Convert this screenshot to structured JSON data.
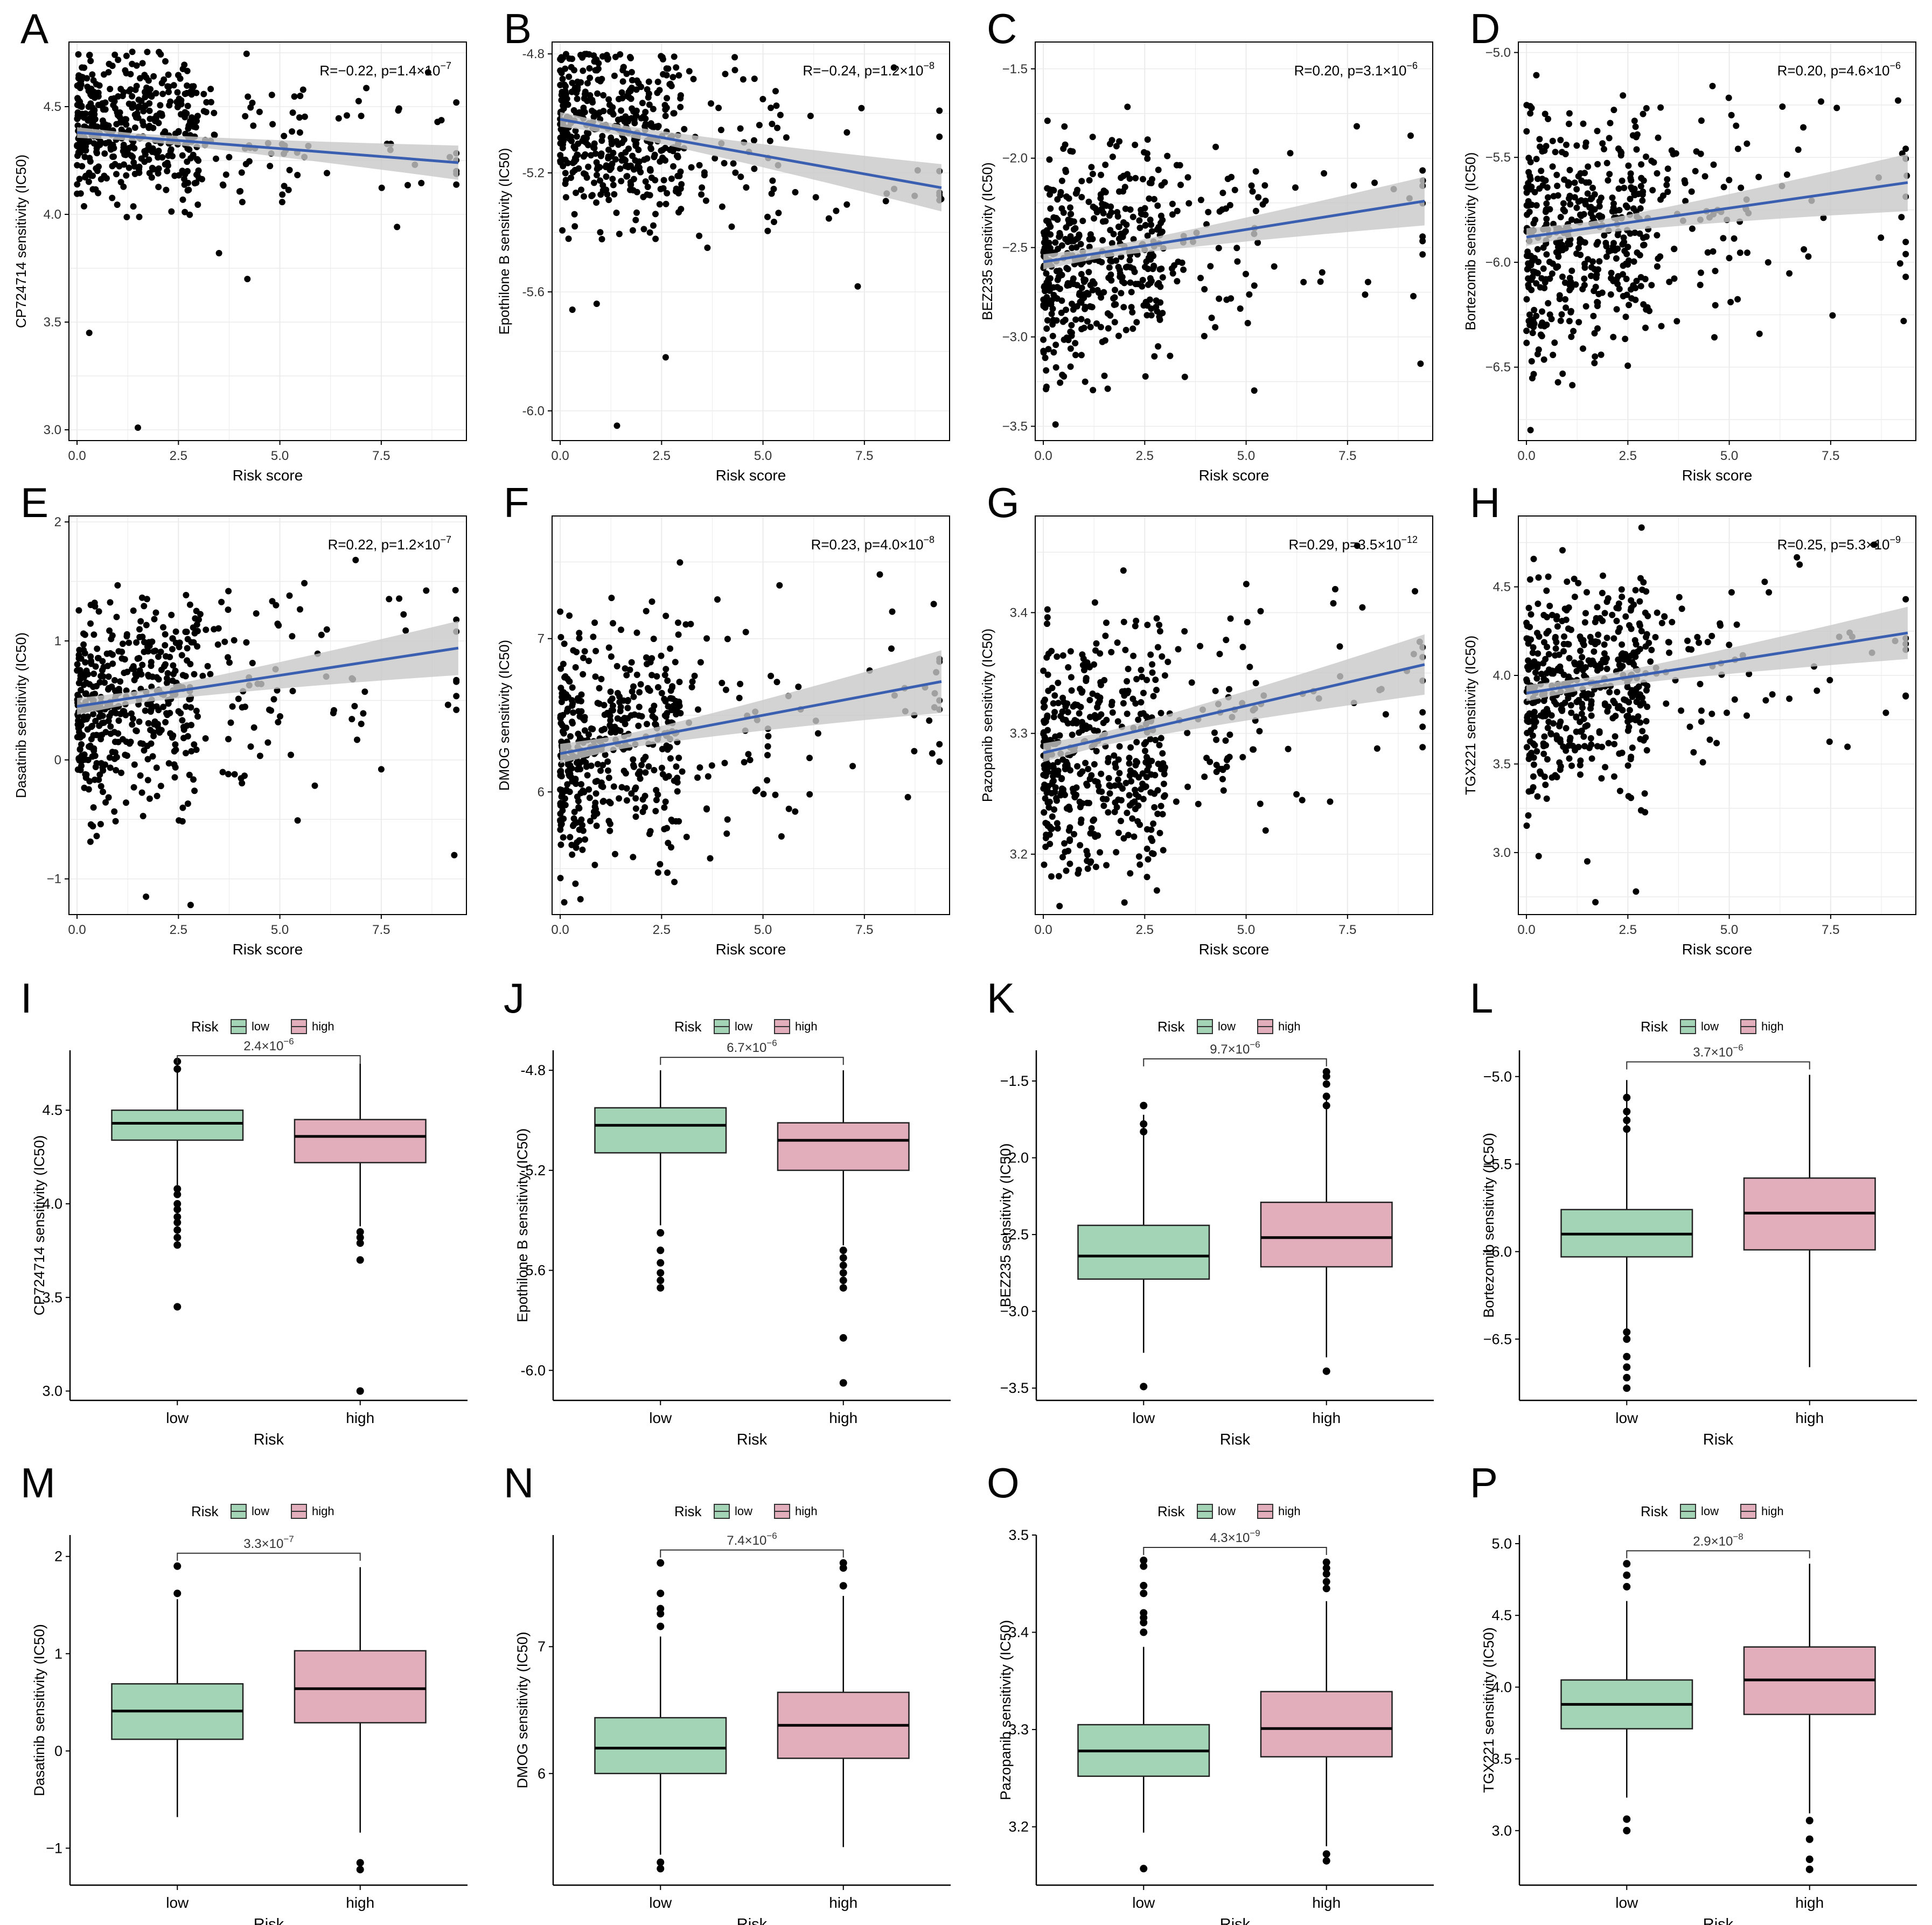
{
  "figure": {
    "colors": {
      "point": "#000000",
      "fit_line": "#3a5fb0",
      "ci_band": "#c8c8c8",
      "grid": "#ebebeb",
      "low_box": "#a3d4b5",
      "high_box": "#e3aebc",
      "axis": "#000000"
    },
    "panels": [
      {
        "id": "A",
        "type": "scatter",
        "xlabel": "Risk score",
        "ylabel": "CP724714 sensitivity (IC50)",
        "xlim": [
          -0.2,
          9.6
        ],
        "ylim": [
          2.95,
          4.8
        ],
        "yticks": [
          "3.0",
          "3.5",
          "4.0",
          "4.5"
        ],
        "xticks": [
          "0.0",
          "2.5",
          "5.0",
          "7.5"
        ],
        "annotation": {
          "r": "R=−0.22, p=1.4×10",
          "exp": "−7"
        },
        "fit": {
          "start": [
            0,
            4.38
          ],
          "end": [
            9.4,
            4.24
          ],
          "ci": 0.07
        },
        "cloud": {
          "ymin": 3.78,
          "ymax": 4.76,
          "center": 4.4,
          "spread": 0.17,
          "n": 520,
          "seed": 11
        },
        "extra": [
          [
            0.3,
            3.45
          ],
          [
            1.5,
            3.01
          ],
          [
            4.2,
            3.7
          ],
          [
            3.5,
            3.82
          ]
        ]
      },
      {
        "id": "B",
        "type": "scatter",
        "xlabel": "Risk score",
        "ylabel": "Epothilone B sensitivity (IC50)",
        "xlim": [
          -0.2,
          9.6
        ],
        "ylim": [
          -6.1,
          -4.76
        ],
        "yticks": [
          "-6.0",
          "-5.6",
          "-5.2",
          "-4.8"
        ],
        "xticks": [
          "0.0",
          "2.5",
          "5.0",
          "7.5"
        ],
        "annotation": {
          "r": "R=−0.24, p=1.2×10",
          "exp": "−8"
        },
        "fit": {
          "start": [
            0,
            -5.02
          ],
          "end": [
            9.4,
            -5.25
          ],
          "ci": 0.07
        },
        "cloud": {
          "ymin": -5.6,
          "ymax": -4.8,
          "center": -5.05,
          "spread": 0.15,
          "n": 520,
          "seed": 23
        },
        "extra": [
          [
            1.4,
            -6.05
          ],
          [
            2.6,
            -5.82
          ],
          [
            0.3,
            -5.66
          ],
          [
            0.9,
            -5.64
          ]
        ]
      },
      {
        "id": "C",
        "type": "scatter",
        "xlabel": "Risk score",
        "ylabel": "BEZ235 sensitivity (IC50)",
        "xlim": [
          -0.2,
          9.6
        ],
        "ylim": [
          -3.58,
          -1.35
        ],
        "yticks": [
          "−3.5",
          "−3.0",
          "−2.5",
          "−2.0",
          "−1.5"
        ],
        "xticks": [
          "0.0",
          "2.5",
          "5.0",
          "7.5"
        ],
        "annotation": {
          "r": "R=0.20, p=3.1×10",
          "exp": "−6"
        },
        "fit": {
          "start": [
            0,
            -2.58
          ],
          "end": [
            9.4,
            -2.24
          ],
          "ci": 0.12
        },
        "cloud": {
          "ymin": -3.3,
          "ymax": -1.45,
          "center": -2.55,
          "spread": 0.3,
          "n": 520,
          "seed": 37
        },
        "extra": [
          [
            0.3,
            -3.49
          ],
          [
            9.3,
            -3.15
          ],
          [
            5.2,
            -3.3
          ]
        ]
      },
      {
        "id": "D",
        "type": "scatter",
        "xlabel": "Risk score",
        "ylabel": "Bortezomib sensitivity (IC50)",
        "xlim": [
          -0.2,
          9.6
        ],
        "ylim": [
          -6.85,
          -4.95
        ],
        "yticks": [
          "−6.5",
          "−6.0",
          "−5.5",
          "−5.0"
        ],
        "xticks": [
          "0.0",
          "2.5",
          "5.0",
          "7.5"
        ],
        "annotation": {
          "r": "R=0.20, p=4.6×10",
          "exp": "−6"
        },
        "fit": {
          "start": [
            0,
            -5.88
          ],
          "end": [
            9.4,
            -5.62
          ],
          "ci": 0.12
        },
        "cloud": {
          "ymin": -6.6,
          "ymax": -5.0,
          "center": -5.87,
          "spread": 0.28,
          "n": 520,
          "seed": 41
        },
        "extra": [
          [
            0.1,
            -6.8
          ],
          [
            9.3,
            -6.28
          ],
          [
            4.3,
            -6.05
          ]
        ]
      },
      {
        "id": "E",
        "type": "scatter",
        "xlabel": "Risk score",
        "ylabel": "Dasatinib sensitivity (IC50)",
        "xlim": [
          -0.2,
          9.6
        ],
        "ylim": [
          -1.3,
          2.05
        ],
        "yticks": [
          "−1",
          "0",
          "1",
          "2"
        ],
        "xticks": [
          "0.0",
          "2.5",
          "5.0",
          "7.5"
        ],
        "annotation": {
          "r": "R=0.22, p=1.2×10",
          "exp": "−7"
        },
        "fit": {
          "start": [
            0,
            0.45
          ],
          "end": [
            9.4,
            0.94
          ],
          "ci": 0.2
        },
        "cloud": {
          "ymin": -0.7,
          "ymax": 1.9,
          "center": 0.5,
          "spread": 0.45,
          "n": 520,
          "seed": 53
        },
        "extra": [
          [
            2.8,
            -1.22
          ],
          [
            1.7,
            -1.15
          ],
          [
            9.3,
            -0.8
          ]
        ]
      },
      {
        "id": "F",
        "type": "scatter",
        "xlabel": "Risk score",
        "ylabel": "DMOG sensitivity (IC50)",
        "xlim": [
          -0.2,
          9.6
        ],
        "ylim": [
          5.2,
          7.8
        ],
        "yticks": [
          "6",
          "7"
        ],
        "xticks": [
          "0.0",
          "2.5",
          "5.0",
          "7.5"
        ],
        "annotation": {
          "r": "R=0.23, p=4.0×10",
          "exp": "−8"
        },
        "fit": {
          "start": [
            0,
            6.25
          ],
          "end": [
            9.4,
            6.72
          ],
          "ci": 0.18
        },
        "cloud": {
          "ymin": 5.4,
          "ymax": 7.7,
          "center": 6.3,
          "spread": 0.38,
          "n": 520,
          "seed": 67
        },
        "extra": [
          [
            0.1,
            5.28
          ],
          [
            0.5,
            5.3
          ]
        ]
      },
      {
        "id": "G",
        "type": "scatter",
        "xlabel": "Risk score",
        "ylabel": "Pazopanib sensitivity (IC50)",
        "xlim": [
          -0.2,
          9.6
        ],
        "ylim": [
          3.15,
          3.48
        ],
        "yticks": [
          "3.2",
          "3.3",
          "3.4"
        ],
        "xticks": [
          "0.0",
          "2.5",
          "5.0",
          "7.5"
        ],
        "annotation": {
          "r": "R=0.29, p=3.5×10",
          "exp": "−12"
        },
        "fit": {
          "start": [
            0,
            3.284
          ],
          "end": [
            9.4,
            3.357
          ],
          "ci": 0.022
        },
        "cloud": {
          "ymin": 3.18,
          "ymax": 3.47,
          "center": 3.285,
          "spread": 0.05,
          "n": 520,
          "seed": 79
        },
        "extra": [
          [
            0.4,
            3.157
          ],
          [
            2.0,
            3.16
          ],
          [
            2.8,
            3.17
          ]
        ]
      },
      {
        "id": "H",
        "type": "scatter",
        "xlabel": "Risk score",
        "ylabel": "TGX221 sensitivity (IC50)",
        "xlim": [
          -0.2,
          9.6
        ],
        "ylim": [
          2.65,
          4.9
        ],
        "yticks": [
          "3.0",
          "3.5",
          "4.0",
          "4.5"
        ],
        "xticks": [
          "0.0",
          "2.5",
          "5.0",
          "7.5"
        ],
        "annotation": {
          "r": "R=0.25, p=5.3×10",
          "exp": "−9"
        },
        "fit": {
          "start": [
            0,
            3.9
          ],
          "end": [
            9.4,
            4.24
          ],
          "ci": 0.13
        },
        "cloud": {
          "ymin": 3.15,
          "ymax": 4.85,
          "center": 3.95,
          "spread": 0.3,
          "n": 520,
          "seed": 83
        },
        "extra": [
          [
            1.7,
            2.72
          ],
          [
            2.7,
            2.78
          ],
          [
            0.3,
            2.98
          ],
          [
            1.5,
            2.95
          ]
        ]
      },
      {
        "id": "I",
        "type": "box",
        "legend_title": "Risk",
        "legend_labels": [
          "low",
          "high"
        ],
        "xlabel": "Risk",
        "ylabel": "CP724714 sensitivity (IC50)",
        "categories": [
          "low",
          "high"
        ],
        "ylim": [
          2.95,
          4.82
        ],
        "yticks": [
          "3.0",
          "3.5",
          "4.0",
          "4.5"
        ],
        "pvalue": {
          "base": "2.4×10",
          "exp": "−6"
        },
        "boxes": [
          {
            "q1": 4.34,
            "median": 4.43,
            "q3": 4.5,
            "wlo": 4.1,
            "whi": 4.74,
            "outliers": [
              4.76,
              4.72,
              4.08,
              4.05,
              4.0,
              3.97,
              3.93,
              3.9,
              3.86,
              3.82,
              3.78,
              3.45
            ]
          },
          {
            "q1": 4.22,
            "median": 4.36,
            "q3": 4.45,
            "wlo": 3.88,
            "whi": 4.75,
            "outliers": [
              3.85,
              3.82,
              3.79,
              3.7,
              3.0
            ]
          }
        ]
      },
      {
        "id": "J",
        "type": "box",
        "legend_title": "Risk",
        "legend_labels": [
          "low",
          "high"
        ],
        "xlabel": "Risk",
        "ylabel": "Epothilone B sensitivity (IC50)",
        "categories": [
          "low",
          "high"
        ],
        "ylim": [
          -6.12,
          -4.72
        ],
        "yticks": [
          "-6.0",
          "-5.6",
          "-5.2",
          "-4.8"
        ],
        "pvalue": {
          "base": "6.7×10",
          "exp": "−6"
        },
        "boxes": [
          {
            "q1": -5.13,
            "median": -5.02,
            "q3": -4.95,
            "wlo": -5.42,
            "whi": -4.8,
            "outliers": [
              -5.45,
              -5.52,
              -5.57,
              -5.61,
              -5.64,
              -5.67
            ]
          },
          {
            "q1": -5.2,
            "median": -5.08,
            "q3": -5.01,
            "wlo": -5.5,
            "whi": -4.8,
            "outliers": [
              -5.52,
              -5.55,
              -5.58,
              -5.61,
              -5.64,
              -5.67,
              -5.87,
              -6.05
            ]
          }
        ]
      },
      {
        "id": "K",
        "type": "box",
        "legend_title": "Risk",
        "legend_labels": [
          "low",
          "high"
        ],
        "xlabel": "Risk",
        "ylabel": "BEZ235 sensitivity (IC50)",
        "categories": [
          "low",
          "high"
        ],
        "ylim": [
          -3.58,
          -1.3
        ],
        "yticks": [
          "−3.5",
          "−3.0",
          "−2.5",
          "−2.0",
          "−1.5"
        ],
        "pvalue": {
          "base": "9.7×10",
          "exp": "−6"
        },
        "boxes": [
          {
            "q1": -2.79,
            "median": -2.64,
            "q3": -2.44,
            "wlo": -3.27,
            "whi": -1.72,
            "outliers": [
              -1.66,
              -1.78,
              -1.83,
              -3.49
            ]
          },
          {
            "q1": -2.71,
            "median": -2.52,
            "q3": -2.29,
            "wlo": -3.3,
            "whi": -1.58,
            "outliers": [
              -1.44,
              -1.47,
              -1.52,
              -1.6,
              -1.66,
              -3.39
            ]
          }
        ]
      },
      {
        "id": "L",
        "type": "box",
        "legend_title": "Risk",
        "legend_labels": [
          "low",
          "high"
        ],
        "xlabel": "Risk",
        "ylabel": "Bortezomib sensitivity (IC50)",
        "categories": [
          "low",
          "high"
        ],
        "ylim": [
          -6.85,
          -4.85
        ],
        "yticks": [
          "−6.5",
          "−6.0",
          "−5.5",
          "−5.0"
        ],
        "pvalue": {
          "base": "3.7×10",
          "exp": "−6"
        },
        "boxes": [
          {
            "q1": -6.03,
            "median": -5.9,
            "q3": -5.76,
            "wlo": -6.44,
            "whi": -5.02,
            "outliers": [
              -5.12,
              -5.2,
              -5.25,
              -5.3,
              -6.46,
              -6.5,
              -6.6,
              -6.66,
              -6.72,
              -6.78
            ]
          },
          {
            "q1": -5.99,
            "median": -5.78,
            "q3": -5.58,
            "wlo": -6.66,
            "whi": -4.99,
            "outliers": []
          }
        ]
      },
      {
        "id": "M",
        "type": "box",
        "legend_title": "Risk",
        "legend_labels": [
          "low",
          "high"
        ],
        "xlabel": "Risk",
        "ylabel": "Dasatinib sensitivity (IC50)",
        "categories": [
          "low",
          "high"
        ],
        "ylim": [
          -1.38,
          2.22
        ],
        "yticks": [
          "−1",
          "0",
          "1",
          "2"
        ],
        "pvalue": {
          "base": "3.3×10",
          "exp": "−7"
        },
        "boxes": [
          {
            "q1": 0.12,
            "median": 0.41,
            "q3": 0.69,
            "wlo": -0.68,
            "whi": 1.56,
            "outliers": [
              1.62,
              1.9
            ]
          },
          {
            "q1": 0.29,
            "median": 0.64,
            "q3": 1.03,
            "wlo": -0.84,
            "whi": 1.89,
            "outliers": [
              -1.15,
              -1.22
            ]
          }
        ]
      },
      {
        "id": "N",
        "type": "box",
        "legend_title": "Risk",
        "legend_labels": [
          "low",
          "high"
        ],
        "xlabel": "Risk",
        "ylabel": "DMOG sensitivity (IC50)",
        "categories": [
          "low",
          "high"
        ],
        "ylim": [
          5.12,
          7.88
        ],
        "yticks": [
          "6",
          "7"
        ],
        "pvalue": {
          "base": "7.4×10",
          "exp": "−6"
        },
        "boxes": [
          {
            "q1": 6.0,
            "median": 6.2,
            "q3": 6.44,
            "wlo": 5.36,
            "whi": 7.08,
            "outliers": [
              7.16,
              7.26,
              7.3,
              7.42,
              7.66,
              5.3,
              5.25
            ]
          },
          {
            "q1": 6.12,
            "median": 6.38,
            "q3": 6.64,
            "wlo": 5.42,
            "whi": 7.4,
            "outliers": [
              7.48,
              7.62,
              7.66
            ]
          }
        ]
      },
      {
        "id": "O",
        "type": "box",
        "legend_title": "Risk",
        "legend_labels": [
          "low",
          "high"
        ],
        "xlabel": "Risk",
        "ylabel": "Pazopanib sensitivity (IC50)",
        "categories": [
          "low",
          "high"
        ],
        "ylim": [
          3.14,
          3.5
        ],
        "yticks": [
          "3.2",
          "3.3",
          "3.4",
          "3.5"
        ],
        "pvalue": {
          "base": "4.3×10",
          "exp": "−9"
        },
        "boxes": [
          {
            "q1": 3.252,
            "median": 3.278,
            "q3": 3.305,
            "wlo": 3.194,
            "whi": 3.385,
            "outliers": [
              3.4,
              3.41,
              3.415,
              3.42,
              3.44,
              3.448,
              3.468,
              3.474,
              3.157
            ]
          },
          {
            "q1": 3.272,
            "median": 3.301,
            "q3": 3.339,
            "wlo": 3.18,
            "whi": 3.432,
            "outliers": [
              3.445,
              3.452,
              3.46,
              3.466,
              3.472,
              3.165,
              3.172
            ]
          }
        ]
      },
      {
        "id": "P",
        "type": "box",
        "legend_title": "Risk",
        "legend_labels": [
          "low",
          "high"
        ],
        "xlabel": "Risk",
        "ylabel": "TGX221 sensitivity (IC50)",
        "categories": [
          "low",
          "high"
        ],
        "ylim": [
          2.62,
          5.06
        ],
        "yticks": [
          "3.0",
          "3.5",
          "4.0",
          "4.5",
          "5.0"
        ],
        "pvalue": {
          "base": "2.9×10",
          "exp": "−8"
        },
        "boxes": [
          {
            "q1": 3.71,
            "median": 3.88,
            "q3": 4.05,
            "wlo": 3.23,
            "whi": 4.6,
            "outliers": [
              4.7,
              4.78,
              4.86,
              3.08,
              3.0
            ]
          },
          {
            "q1": 3.81,
            "median": 4.05,
            "q3": 4.28,
            "wlo": 3.12,
            "whi": 4.86,
            "outliers": [
              3.07,
              2.94,
              2.8,
              2.73
            ]
          }
        ]
      }
    ]
  }
}
